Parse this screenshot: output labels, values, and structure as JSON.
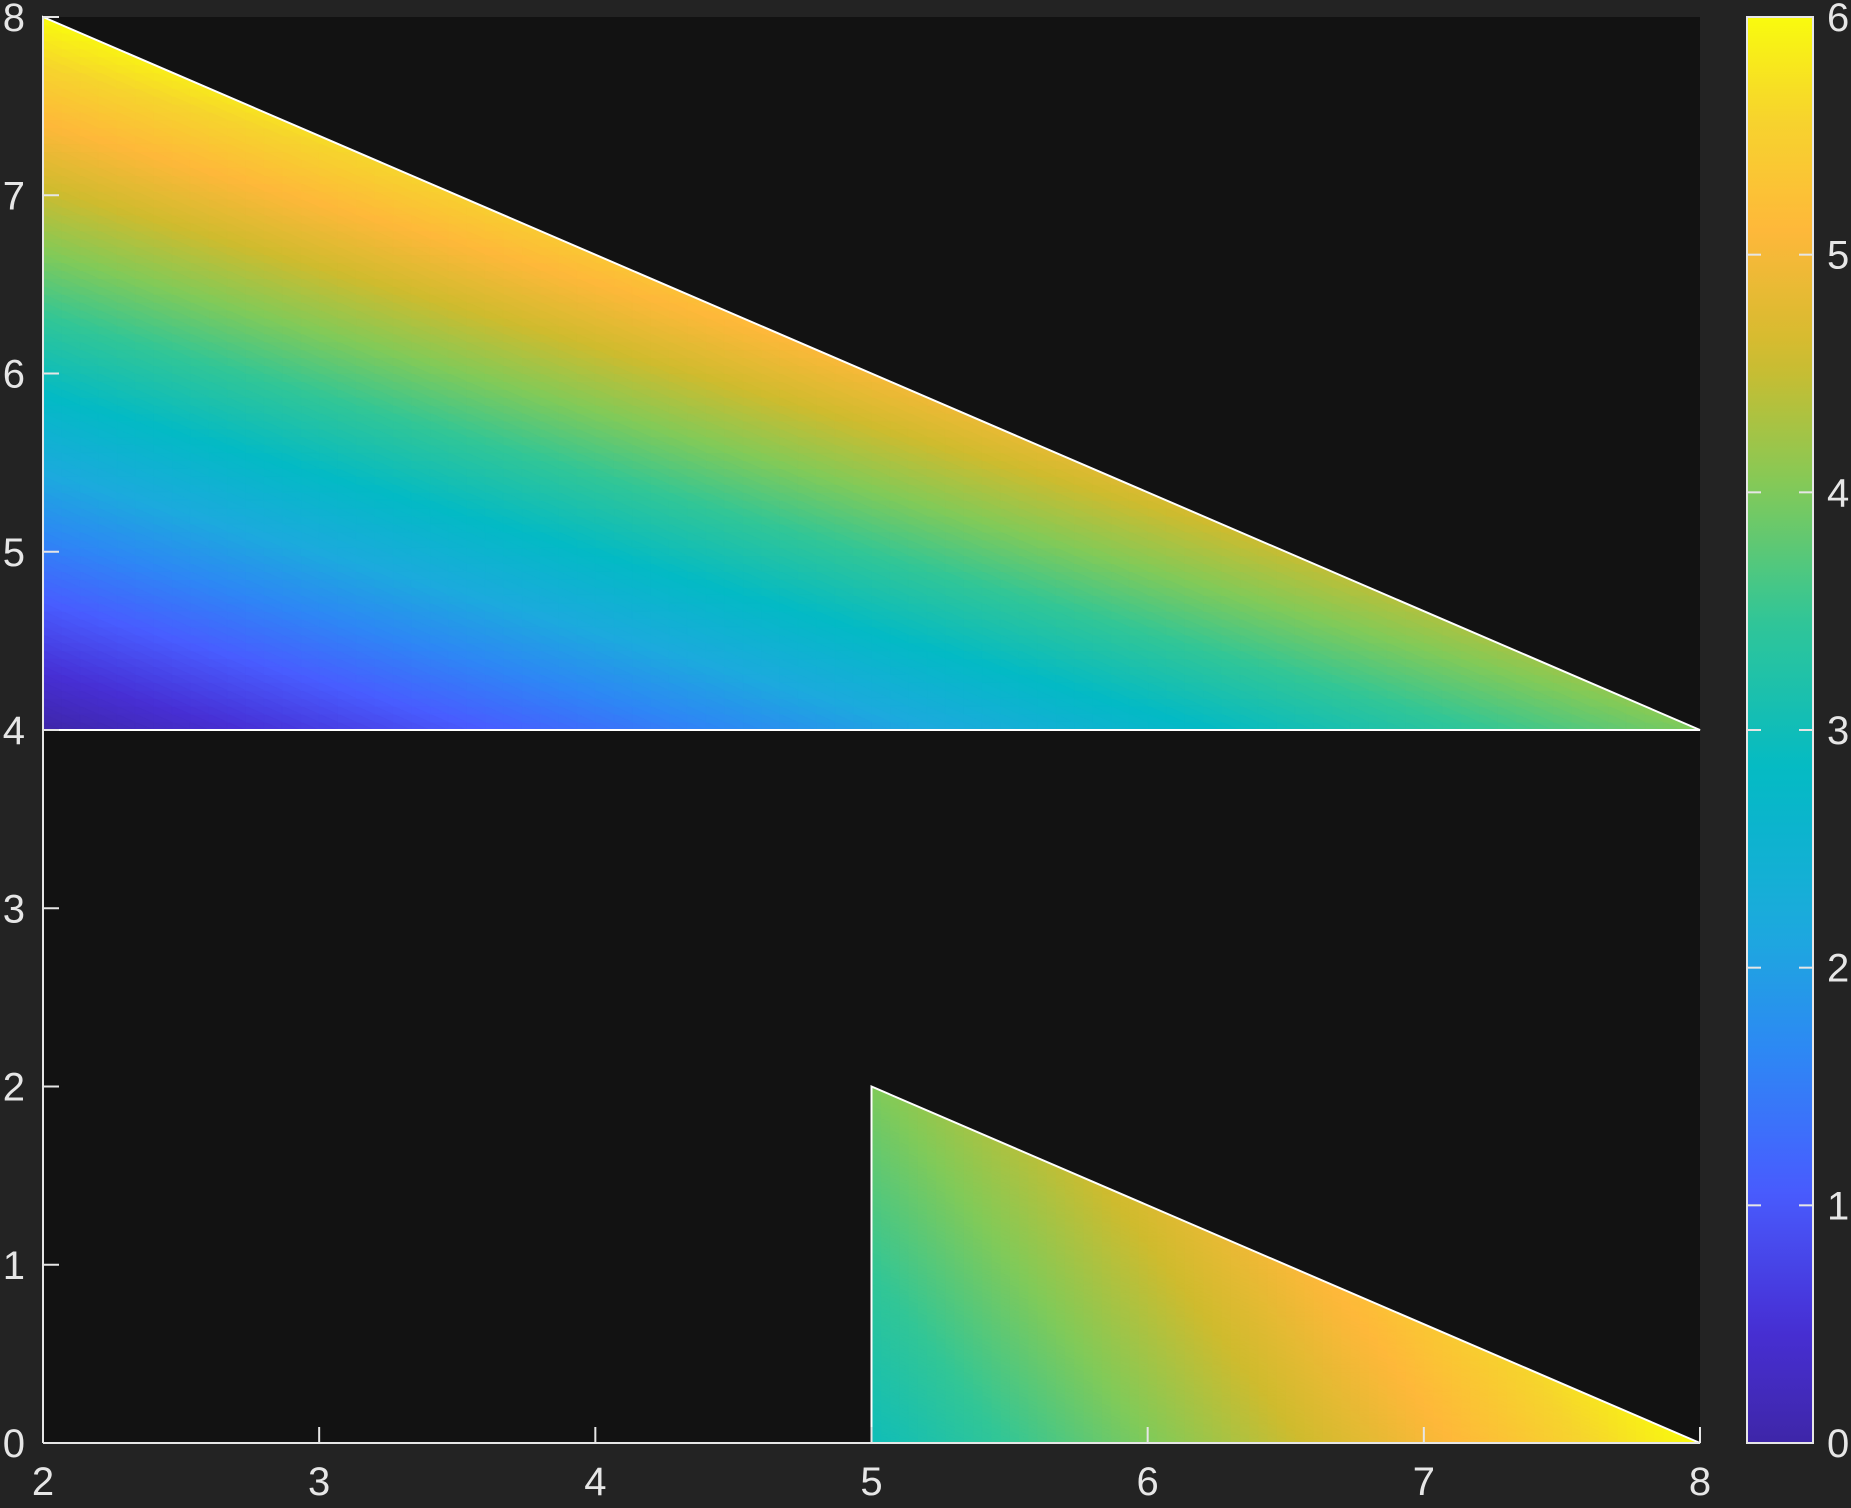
{
  "chart_data": {
    "type": "heatmap",
    "title": "",
    "xlabel": "",
    "ylabel": "",
    "xlim": [
      2,
      8
    ],
    "ylim": [
      0,
      8
    ],
    "x_ticks": [
      "2",
      "3",
      "4",
      "5",
      "6",
      "7",
      "8"
    ],
    "y_ticks": [
      "0",
      "1",
      "2",
      "3",
      "4",
      "5",
      "6",
      "7",
      "8"
    ],
    "grid": false,
    "background_color": "#121212",
    "colormap": "parula",
    "colorbar": {
      "position": "right",
      "range": [
        0,
        6
      ],
      "ticks": [
        "0",
        "1",
        "2",
        "3",
        "4",
        "5",
        "6"
      ]
    },
    "patches": [
      {
        "shape": "triangle",
        "vertices": [
          [
            2,
            8
          ],
          [
            2,
            4
          ],
          [
            8,
            4
          ]
        ],
        "vertex_values": [
          6,
          0,
          4
        ],
        "edge_color": "#ffffff"
      },
      {
        "shape": "triangle",
        "vertices": [
          [
            5,
            2
          ],
          [
            5,
            0
          ],
          [
            8,
            0
          ]
        ],
        "vertex_values": [
          4,
          3,
          6
        ],
        "edge_color": "#ffffff"
      }
    ]
  },
  "colors": {
    "figure_background": "#232323",
    "axes_background": "#121212",
    "axis_color": "#e6e6e6"
  }
}
